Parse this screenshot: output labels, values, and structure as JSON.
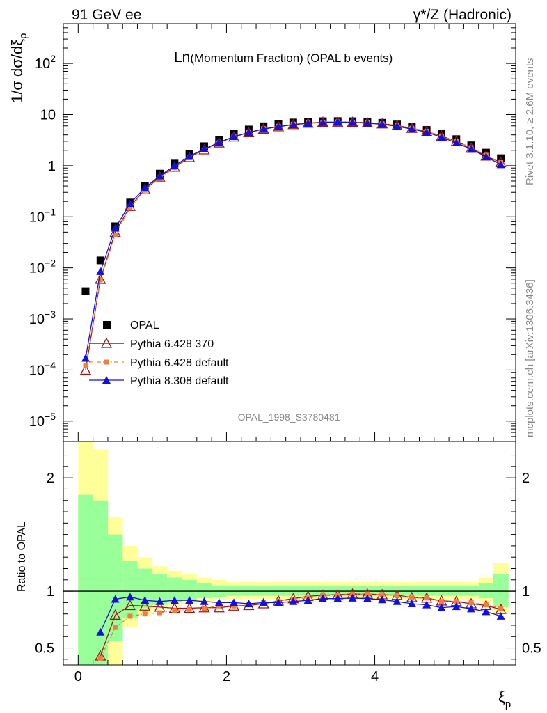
{
  "header": {
    "left": "91 GeV ee",
    "right": "γ*/Z (Hadronic)"
  },
  "side": {
    "rivet": "Rivet 3.1.10, ≥ 2.6M events",
    "mcplots": "mcplots.cern.ch [arXiv:1306.3436]"
  },
  "chart_data": [
    {
      "type": "scatter",
      "title_big": "Ln",
      "title_small": "(Momentum Fraction) (OPAL b events)",
      "analysis_id": "OPAL_1998_S3780481",
      "ylabel": "1/σ dσ/dξ",
      "ylabel_sub": "p",
      "yscale": "log",
      "ylim": [
        4e-06,
        600
      ],
      "xlim": [
        -0.2,
        5.9
      ],
      "ytick_labels": [
        "10^2",
        "10",
        "1",
        "10^-1",
        "10^-2",
        "10^-3",
        "10^-4",
        "10^-5"
      ],
      "legend": {
        "placement": "bottom-left",
        "entries": [
          "OPAL",
          "Pythia 6.428 370",
          "Pythia 6.428 default",
          "Pythia 8.308 default"
        ]
      },
      "x": [
        0.1,
        0.3,
        0.5,
        0.7,
        0.9,
        1.1,
        1.3,
        1.5,
        1.7,
        1.9,
        2.1,
        2.3,
        2.5,
        2.7,
        2.9,
        3.1,
        3.3,
        3.5,
        3.7,
        3.9,
        4.1,
        4.3,
        4.5,
        4.7,
        4.9,
        5.1,
        5.3,
        5.5,
        5.7
      ],
      "series": [
        {
          "name": "OPAL",
          "color": "#000000",
          "marker": "square",
          "values": [
            0.0035,
            0.014,
            0.065,
            0.19,
            0.4,
            0.7,
            1.1,
            1.7,
            2.4,
            3.2,
            4.2,
            5.1,
            5.9,
            6.5,
            7.0,
            7.3,
            7.4,
            7.45,
            7.4,
            7.2,
            6.9,
            6.4,
            5.8,
            5.0,
            4.2,
            3.3,
            2.5,
            1.8,
            1.4
          ]
        },
        {
          "name": "Pythia 6.428 370",
          "color": "#9a1818",
          "marker": "triangle-open",
          "values": [
            0.0001,
            0.006,
            0.05,
            0.16,
            0.34,
            0.6,
            0.94,
            1.45,
            2.05,
            2.8,
            3.65,
            4.45,
            5.2,
            5.8,
            6.4,
            6.8,
            7.1,
            7.15,
            7.1,
            6.95,
            6.6,
            6.1,
            5.4,
            4.7,
            3.8,
            3.0,
            2.2,
            1.55,
            1.15
          ]
        },
        {
          "name": "Pythia 6.428 default",
          "color": "#f47c3c",
          "marker": "square-small",
          "values": [
            0.00012,
            0.0058,
            0.044,
            0.15,
            0.33,
            0.57,
            0.91,
            1.43,
            2.03,
            2.8,
            3.65,
            4.45,
            5.3,
            5.9,
            6.5,
            6.85,
            7.1,
            7.2,
            7.1,
            6.95,
            6.6,
            6.1,
            5.4,
            4.7,
            3.8,
            3.0,
            2.25,
            1.6,
            1.15
          ]
        },
        {
          "name": "Pythia 8.308 default",
          "color": "#1010e0",
          "marker": "triangle",
          "values": [
            0.00017,
            0.0085,
            0.06,
            0.18,
            0.37,
            0.63,
            1.0,
            1.53,
            2.13,
            2.85,
            3.7,
            4.45,
            5.2,
            5.8,
            6.35,
            6.75,
            7.0,
            7.1,
            7.0,
            6.8,
            6.45,
            5.9,
            5.2,
            4.5,
            3.6,
            2.8,
            2.1,
            1.5,
            1.05
          ]
        }
      ]
    },
    {
      "type": "scatter",
      "ylabel": "Ratio to OPAL",
      "xlabel": "ξ",
      "xlabel_sub": "p",
      "ylim": [
        0.35,
        2.32
      ],
      "xlim": [
        -0.2,
        5.9
      ],
      "yticks": [
        0.5,
        1,
        2
      ],
      "ytick_labels": [
        "0.5",
        "1",
        "2"
      ],
      "xticks": [
        0,
        2,
        4
      ],
      "xtick_labels": [
        "0",
        "2",
        "4"
      ],
      "reference_line": 1,
      "x": [
        0.1,
        0.3,
        0.5,
        0.7,
        0.9,
        1.1,
        1.3,
        1.5,
        1.7,
        1.9,
        2.1,
        2.3,
        2.5,
        2.7,
        2.9,
        3.1,
        3.3,
        3.5,
        3.7,
        3.9,
        4.1,
        4.3,
        4.5,
        4.7,
        4.9,
        5.1,
        5.3,
        5.5,
        5.7
      ],
      "bin_edges": [
        0.0,
        0.2,
        0.4,
        0.6,
        0.8,
        1.0,
        1.2,
        1.4,
        1.6,
        1.8,
        2.0,
        2.2,
        2.4,
        2.6,
        2.8,
        3.0,
        3.2,
        3.4,
        3.6,
        3.8,
        4.0,
        4.2,
        4.4,
        4.6,
        4.8,
        5.0,
        5.2,
        5.4,
        5.6,
        5.8
      ],
      "band_yellow_upper": [
        2.32,
        2.25,
        1.65,
        1.4,
        1.3,
        1.22,
        1.18,
        1.15,
        1.12,
        1.1,
        1.08,
        1.08,
        1.08,
        1.08,
        1.08,
        1.08,
        1.08,
        1.08,
        1.08,
        1.08,
        1.08,
        1.08,
        1.08,
        1.08,
        1.08,
        1.08,
        1.08,
        1.12,
        1.25
      ],
      "band_yellow_lower": [
        0.35,
        0.35,
        0.35,
        0.68,
        0.78,
        0.84,
        0.87,
        0.89,
        0.91,
        0.92,
        0.93,
        0.93,
        0.93,
        0.93,
        0.93,
        0.93,
        0.93,
        0.93,
        0.93,
        0.93,
        0.93,
        0.93,
        0.93,
        0.93,
        0.93,
        0.93,
        0.93,
        0.9,
        0.8
      ],
      "band_green_upper": [
        1.85,
        1.8,
        1.5,
        1.27,
        1.2,
        1.15,
        1.12,
        1.1,
        1.07,
        1.05,
        1.05,
        1.05,
        1.05,
        1.05,
        1.05,
        1.05,
        1.05,
        1.05,
        1.05,
        1.05,
        1.05,
        1.05,
        1.05,
        1.05,
        1.05,
        1.05,
        1.05,
        1.07,
        1.15
      ],
      "band_green_lower": [
        0.35,
        0.35,
        0.56,
        0.76,
        0.85,
        0.88,
        0.9,
        0.92,
        0.94,
        0.95,
        0.96,
        0.96,
        0.96,
        0.96,
        0.96,
        0.96,
        0.96,
        0.96,
        0.96,
        0.96,
        0.96,
        0.96,
        0.96,
        0.96,
        0.96,
        0.96,
        0.96,
        0.94,
        0.86
      ],
      "series": [
        {
          "name": "Pythia 6.428 370",
          "color": "#9a1818",
          "marker": "triangle-open",
          "values": [
            null,
            0.43,
            0.79,
            0.875,
            0.87,
            0.86,
            0.85,
            0.85,
            0.855,
            0.855,
            0.87,
            0.875,
            0.89,
            0.915,
            0.935,
            0.955,
            0.965,
            0.97,
            0.975,
            0.975,
            0.97,
            0.965,
            0.945,
            0.94,
            0.915,
            0.91,
            0.89,
            0.875,
            0.84
          ]
        },
        {
          "name": "Pythia 6.428 default",
          "color": "#f47c3c",
          "marker": "square-small",
          "values": [
            null,
            0.41,
            0.68,
            0.78,
            0.8,
            0.81,
            0.83,
            0.84,
            0.85,
            0.87,
            0.87,
            0.88,
            0.9,
            0.91,
            0.93,
            0.94,
            0.96,
            0.965,
            0.975,
            0.975,
            0.97,
            0.96,
            0.94,
            0.94,
            0.91,
            0.91,
            0.9,
            0.88,
            0.85
          ]
        },
        {
          "name": "Pythia 8.308 default",
          "color": "#1010e0",
          "marker": "triangle",
          "values": [
            null,
            0.64,
            0.93,
            0.95,
            0.92,
            0.91,
            0.92,
            0.92,
            0.91,
            0.9,
            0.9,
            0.89,
            0.9,
            0.9,
            0.91,
            0.92,
            0.935,
            0.935,
            0.94,
            0.935,
            0.925,
            0.91,
            0.89,
            0.88,
            0.855,
            0.865,
            0.845,
            0.82,
            0.78
          ]
        }
      ]
    }
  ]
}
